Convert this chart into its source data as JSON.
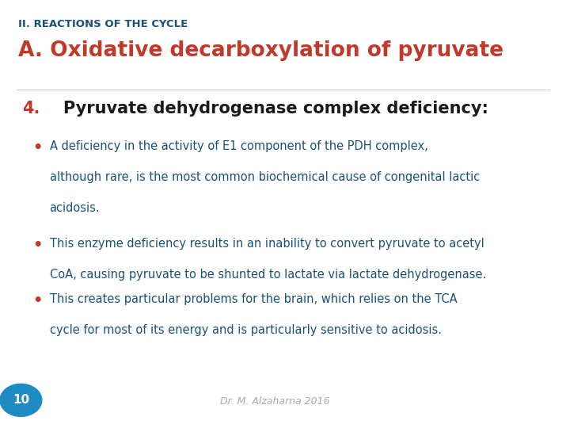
{
  "bg_color": "#ffffff",
  "side_bar_color": "#1e8bc3",
  "subtitle_color": "#1a5276",
  "title_color": "#c0392b",
  "number_color": "#c0392b",
  "heading_color": "#1a1a1a",
  "bullet_color": "#c0392b",
  "body_color": "#1a5276",
  "footer_color": "#aaaaaa",
  "page_num_color": "#ffffff",
  "page_num_bg": "#1e8bc3",
  "subtitle": "II. REACTIONS OF THE CYCLE",
  "title": "A. Oxidative decarboxylation of pyruvate",
  "section_num": "4.",
  "section_heading": "Pyruvate dehydrogenase complex deficiency:",
  "bullet1_line1": "A deficiency in the activity of E1 component of the PDH complex,",
  "bullet1_line2": "although rare, is the most common biochemical cause of congenital lactic",
  "bullet1_line3": "acidosis.",
  "bullet2_line1": "This enzyme deficiency results in an inability to convert pyruvate to acetyl",
  "bullet2_line2": "CoA, causing pyruvate to be shunted to lactate via lactate dehydrogenase.",
  "bullet3_line1": "This creates particular problems for the brain, which relies on the TCA",
  "bullet3_line2": "cycle for most of its energy and is particularly sensitive to acidosis.",
  "footer": "Dr. M. Alzaharna 2016",
  "page_number": "10"
}
